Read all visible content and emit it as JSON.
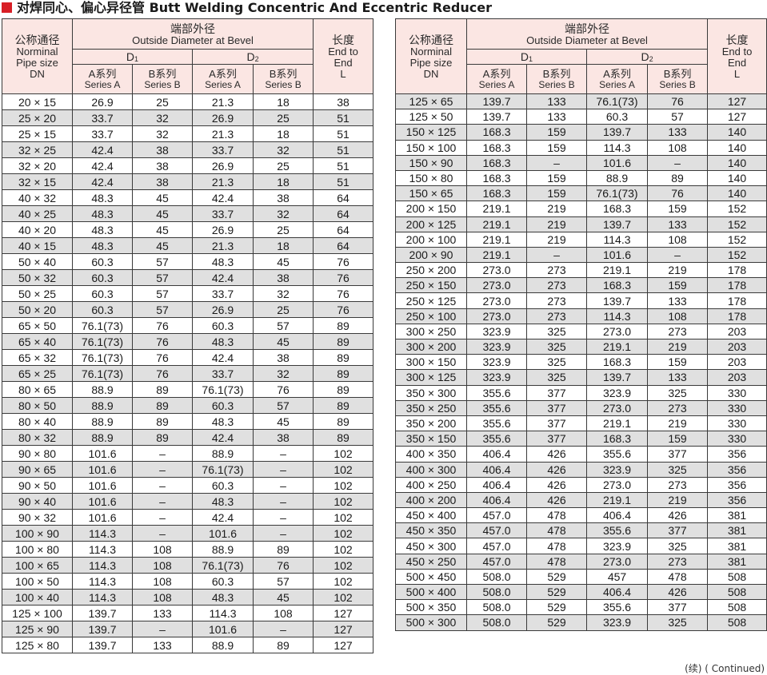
{
  "title": "对焊同心、偏心异径管 Butt Welding Concentric And Eccentric Reducer",
  "continued": "(续) ( Continued)",
  "header": {
    "nominal_cn": "公称通径",
    "nominal_en1": "Norminal",
    "nominal_en2": "Pipe size",
    "nominal_dn": "DN",
    "od_cn": "端部外径",
    "od_en": "Outside Diameter at Bevel",
    "d1_label": "D",
    "d1_sub": "1",
    "d2_label": "D",
    "d2_sub": "2",
    "series_a_cn": "A系列",
    "series_a_en": "Series A",
    "series_b_cn": "B系列",
    "series_b_en": "Series B",
    "length_cn": "长度",
    "length_en1": "End to",
    "length_en2": "End",
    "length_l": "L"
  },
  "left_rows": [
    [
      "20 × 15",
      "26.9",
      "25",
      "21.3",
      "18",
      "38"
    ],
    [
      "25 × 20",
      "33.7",
      "32",
      "26.9",
      "25",
      "51"
    ],
    [
      "25 × 15",
      "33.7",
      "32",
      "21.3",
      "18",
      "51"
    ],
    [
      "32 × 25",
      "42.4",
      "38",
      "33.7",
      "32",
      "51"
    ],
    [
      "32 × 20",
      "42.4",
      "38",
      "26.9",
      "25",
      "51"
    ],
    [
      "32 × 15",
      "42.4",
      "38",
      "21.3",
      "18",
      "51"
    ],
    [
      "40 × 32",
      "48.3",
      "45",
      "42.4",
      "38",
      "64"
    ],
    [
      "40 × 25",
      "48.3",
      "45",
      "33.7",
      "32",
      "64"
    ],
    [
      "40 × 20",
      "48.3",
      "45",
      "26.9",
      "25",
      "64"
    ],
    [
      "40 × 15",
      "48.3",
      "45",
      "21.3",
      "18",
      "64"
    ],
    [
      "50 × 40",
      "60.3",
      "57",
      "48.3",
      "45",
      "76"
    ],
    [
      "50 × 32",
      "60.3",
      "57",
      "42.4",
      "38",
      "76"
    ],
    [
      "50 × 25",
      "60.3",
      "57",
      "33.7",
      "32",
      "76"
    ],
    [
      "50 × 20",
      "60.3",
      "57",
      "26.9",
      "25",
      "76"
    ],
    [
      "65 × 50",
      "76.1(73)",
      "76",
      "60.3",
      "57",
      "89"
    ],
    [
      "65 × 40",
      "76.1(73)",
      "76",
      "48.3",
      "45",
      "89"
    ],
    [
      "65 × 32",
      "76.1(73)",
      "76",
      "42.4",
      "38",
      "89"
    ],
    [
      "65 × 25",
      "76.1(73)",
      "76",
      "33.7",
      "32",
      "89"
    ],
    [
      "80 × 65",
      "88.9",
      "89",
      "76.1(73)",
      "76",
      "89"
    ],
    [
      "80 × 50",
      "88.9",
      "89",
      "60.3",
      "57",
      "89"
    ],
    [
      "80 × 40",
      "88.9",
      "89",
      "48.3",
      "45",
      "89"
    ],
    [
      "80 × 32",
      "88.9",
      "89",
      "42.4",
      "38",
      "89"
    ],
    [
      "90 × 80",
      "101.6",
      "–",
      "88.9",
      "–",
      "102"
    ],
    [
      "90 × 65",
      "101.6",
      "–",
      "76.1(73)",
      "–",
      "102"
    ],
    [
      "90 × 50",
      "101.6",
      "–",
      "60.3",
      "–",
      "102"
    ],
    [
      "90 × 40",
      "101.6",
      "–",
      "48.3",
      "–",
      "102"
    ],
    [
      "90 × 32",
      "101.6",
      "–",
      "42.4",
      "–",
      "102"
    ],
    [
      "100 × 90",
      "114.3",
      "–",
      "101.6",
      "–",
      "102"
    ],
    [
      "100 × 80",
      "114.3",
      "108",
      "88.9",
      "89",
      "102"
    ],
    [
      "100 × 65",
      "114.3",
      "108",
      "76.1(73)",
      "76",
      "102"
    ],
    [
      "100 × 50",
      "114.3",
      "108",
      "60.3",
      "57",
      "102"
    ],
    [
      "100 × 40",
      "114.3",
      "108",
      "48.3",
      "45",
      "102"
    ],
    [
      "125 × 100",
      "139.7",
      "133",
      "114.3",
      "108",
      "127"
    ],
    [
      "125 × 90",
      "139.7",
      "–",
      "101.6",
      "–",
      "127"
    ],
    [
      "125 × 80",
      "139.7",
      "133",
      "88.9",
      "89",
      "127"
    ]
  ],
  "right_rows": [
    [
      "125 × 65",
      "139.7",
      "133",
      "76.1(73)",
      "76",
      "127"
    ],
    [
      "125 × 50",
      "139.7",
      "133",
      "60.3",
      "57",
      "127"
    ],
    [
      "150 × 125",
      "168.3",
      "159",
      "139.7",
      "133",
      "140"
    ],
    [
      "150 × 100",
      "168.3",
      "159",
      "114.3",
      "108",
      "140"
    ],
    [
      "150 × 90",
      "168.3",
      "–",
      "101.6",
      "–",
      "140"
    ],
    [
      "150 × 80",
      "168.3",
      "159",
      "88.9",
      "89",
      "140"
    ],
    [
      "150 × 65",
      "168.3",
      "159",
      "76.1(73)",
      "76",
      "140"
    ],
    [
      "200 × 150",
      "219.1",
      "219",
      "168.3",
      "159",
      "152"
    ],
    [
      "200 × 125",
      "219.1",
      "219",
      "139.7",
      "133",
      "152"
    ],
    [
      "200 × 100",
      "219.1",
      "219",
      "114.3",
      "108",
      "152"
    ],
    [
      "200 × 90",
      "219.1",
      "–",
      "101.6",
      "–",
      "152"
    ],
    [
      "250 × 200",
      "273.0",
      "273",
      "219.1",
      "219",
      "178"
    ],
    [
      "250 × 150",
      "273.0",
      "273",
      "168.3",
      "159",
      "178"
    ],
    [
      "250 × 125",
      "273.0",
      "273",
      "139.7",
      "133",
      "178"
    ],
    [
      "250 × 100",
      "273.0",
      "273",
      "114.3",
      "108",
      "178"
    ],
    [
      "300 × 250",
      "323.9",
      "325",
      "273.0",
      "273",
      "203"
    ],
    [
      "300 × 200",
      "323.9",
      "325",
      "219.1",
      "219",
      "203"
    ],
    [
      "300 × 150",
      "323.9",
      "325",
      "168.3",
      "159",
      "203"
    ],
    [
      "300 × 125",
      "323.9",
      "325",
      "139.7",
      "133",
      "203"
    ],
    [
      "350 × 300",
      "355.6",
      "377",
      "323.9",
      "325",
      "330"
    ],
    [
      "350 × 250",
      "355.6",
      "377",
      "273.0",
      "273",
      "330"
    ],
    [
      "350 × 200",
      "355.6",
      "377",
      "219.1",
      "219",
      "330"
    ],
    [
      "350 × 150",
      "355.6",
      "377",
      "168.3",
      "159",
      "330"
    ],
    [
      "400 × 350",
      "406.4",
      "426",
      "355.6",
      "377",
      "356"
    ],
    [
      "400 × 300",
      "406.4",
      "426",
      "323.9",
      "325",
      "356"
    ],
    [
      "400 × 250",
      "406.4",
      "426",
      "273.0",
      "273",
      "356"
    ],
    [
      "400 × 200",
      "406.4",
      "426",
      "219.1",
      "219",
      "356"
    ],
    [
      "450 × 400",
      "457.0",
      "478",
      "406.4",
      "426",
      "381"
    ],
    [
      "450 × 350",
      "457.0",
      "478",
      "355.6",
      "377",
      "381"
    ],
    [
      "450 × 300",
      "457.0",
      "478",
      "323.9",
      "325",
      "381"
    ],
    [
      "450 × 250",
      "457.0",
      "478",
      "273.0",
      "273",
      "381"
    ],
    [
      "500 × 450",
      "508.0",
      "529",
      "457",
      "478",
      "508"
    ],
    [
      "500 × 400",
      "508.0",
      "529",
      "406.4",
      "426",
      "508"
    ],
    [
      "500 × 350",
      "508.0",
      "529",
      "355.6",
      "377",
      "508"
    ],
    [
      "500 × 300",
      "508.0",
      "529",
      "323.9",
      "325",
      "508"
    ]
  ]
}
